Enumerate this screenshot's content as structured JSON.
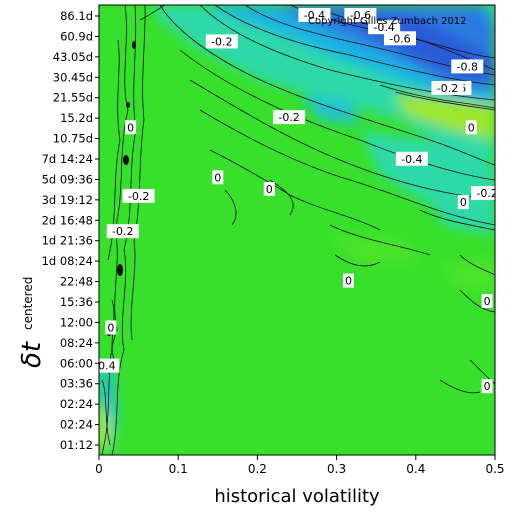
{
  "chart_data": {
    "type": "heatmap",
    "title": "",
    "xlabel": "historical volatility",
    "ylabel_main": "δt",
    "ylabel_sub": "centered",
    "copyright": "Copyright Gilles Zumbach 2012",
    "xlim": [
      0,
      0.5
    ],
    "x_ticks": [
      "0",
      "0.1",
      "0.2",
      "0.3",
      "0.4",
      "0.5"
    ],
    "x_tick_values": [
      0,
      0.1,
      0.2,
      0.3,
      0.4,
      0.5
    ],
    "y_ticks": [
      "86.1d",
      "60.9d",
      "43.05d",
      "30.45d",
      "21.55d",
      "15.2d",
      "10.75d",
      "7d 14:24",
      "5d 09:36",
      "3d 19:12",
      "2d 16:48",
      "1d 21:36",
      "1d 08:24",
      "22:48",
      "15:36",
      "12:00",
      "08:24",
      "06:00",
      "03:36",
      "02:24",
      "02:24",
      "01:12"
    ],
    "grid": false,
    "colors": {
      "background_level": "#37e02a",
      "high_level": "#c8f02a",
      "mid_low": "#2ed9a8",
      "low": "#1fb3e3",
      "lowest": "#2a5ad8",
      "contour": "#111111"
    },
    "contour_labels": [
      {
        "text": "-0.4",
        "x": 0.272,
        "y": 86.1
      },
      {
        "text": "-0.6",
        "x": 0.33,
        "y": 86.1
      },
      {
        "text": "-0.4",
        "x": 0.36,
        "y": 70
      },
      {
        "text": "-0.6",
        "x": 0.38,
        "y": 58
      },
      {
        "text": "-0.2",
        "x": 0.155,
        "y": 55
      },
      {
        "text": "-0.8",
        "x": 0.465,
        "y": 36
      },
      {
        "text": "-0.6",
        "x": 0.45,
        "y": 25
      },
      {
        "text": "-0.2",
        "x": 0.44,
        "y": 25
      },
      {
        "text": "-0.2",
        "x": 0.24,
        "y": 15.2
      },
      {
        "text": "0",
        "x": 0.47,
        "y": 12.8
      },
      {
        "text": "0",
        "x": 0.04,
        "y": 12.8
      },
      {
        "text": "-0.4",
        "x": 0.395,
        "y": 7.5
      },
      {
        "text": "-0.2",
        "x": 0.49,
        "y": 4.2
      },
      {
        "text": "0",
        "x": 0.15,
        "y": 5.5
      },
      {
        "text": "0",
        "x": 0.215,
        "y": 4.5
      },
      {
        "text": "0",
        "x": 0.46,
        "y": 3.6
      },
      {
        "text": "-0.2",
        "x": 0.05,
        "y": 4.0
      },
      {
        "text": "-0.2",
        "x": 0.03,
        "y": 2.2
      },
      {
        "text": "0",
        "x": 0.315,
        "y": 0.95
      },
      {
        "text": "0",
        "x": 0.49,
        "y": 0.65
      },
      {
        "text": "0",
        "x": 0.015,
        "y": 0.45
      },
      {
        "text": "0.4",
        "x": 0.01,
        "y": 0.23
      },
      {
        "text": "0",
        "x": 0.49,
        "y": 0.14
      }
    ]
  }
}
